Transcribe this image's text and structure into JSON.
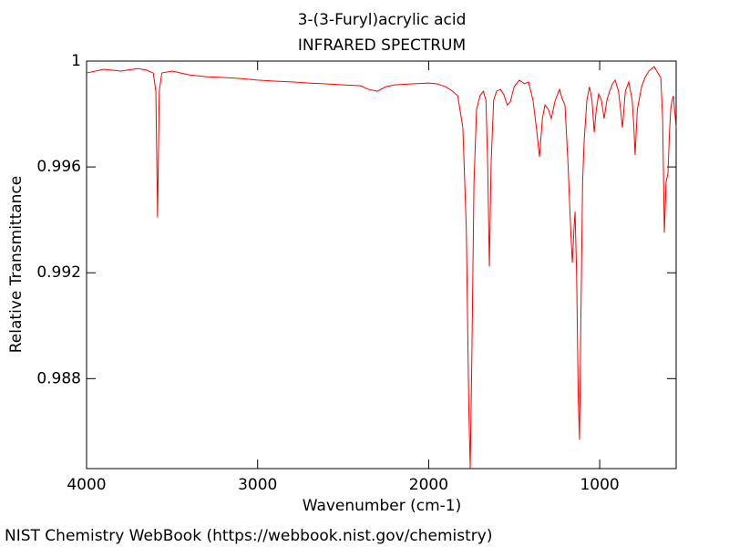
{
  "chart_data": {
    "type": "line",
    "title": "3-(3-Furyl)acrylic acid",
    "subtitle": "INFRARED SPECTRUM",
    "x_label": "Wavenumber (cm-1)",
    "y_label": "Relative Transmittance",
    "xlim": [
      4000,
      553
    ],
    "ylim": [
      0.9846,
      1
    ],
    "xticks": [
      4000,
      3000,
      2000,
      1000
    ],
    "yticks": [
      1,
      0.996,
      0.992,
      0.988
    ],
    "series": [
      {
        "color": "#ff0000",
        "x": [
          4000,
          3900,
          3800,
          3700,
          3650,
          3610,
          3595,
          3585,
          3575,
          3560,
          3500,
          3400,
          3300,
          3200,
          3100,
          3000,
          2900,
          2800,
          2700,
          2600,
          2500,
          2400,
          2350,
          2300,
          2250,
          2200,
          2100,
          2000,
          1950,
          1900,
          1860,
          1830,
          1800,
          1780,
          1765,
          1757,
          1748,
          1735,
          1720,
          1700,
          1680,
          1665,
          1655,
          1645,
          1635,
          1620,
          1603,
          1580,
          1560,
          1540,
          1523,
          1500,
          1470,
          1440,
          1416,
          1390,
          1370,
          1352,
          1335,
          1320,
          1300,
          1283,
          1260,
          1235,
          1220,
          1203,
          1185,
          1170,
          1160,
          1150,
          1144,
          1135,
          1125,
          1118,
          1110,
          1100,
          1091,
          1075,
          1060,
          1045,
          1032,
          1020,
          1006,
          990,
          974,
          958,
          942,
          925,
          910,
          890,
          878,
          867,
          850,
          830,
          810,
          800,
          793,
          780,
          755,
          735,
          713,
          695,
          681,
          660,
          643,
          632,
          622,
          612,
          601,
          593,
          585,
          577,
          569,
          560,
          553
        ],
        "values": [
          0.99955,
          0.99969,
          0.99962,
          0.99972,
          0.99966,
          0.99955,
          0.99886,
          0.9941,
          0.99886,
          0.99955,
          0.99962,
          0.99948,
          0.99941,
          0.99938,
          0.99934,
          0.99928,
          0.99924,
          0.99921,
          0.99917,
          0.99914,
          0.9991,
          0.99907,
          0.99893,
          0.99886,
          0.99903,
          0.9991,
          0.99914,
          0.99917,
          0.99914,
          0.99903,
          0.99886,
          0.99869,
          0.99748,
          0.99369,
          0.98679,
          0.98462,
          0.98852,
          0.99541,
          0.99817,
          0.99869,
          0.99886,
          0.99852,
          0.9961,
          0.99224,
          0.9961,
          0.99852,
          0.99886,
          0.99893,
          0.99872,
          0.99834,
          0.99845,
          0.99903,
          0.99928,
          0.99914,
          0.99921,
          0.99852,
          0.99748,
          0.99638,
          0.99783,
          0.99834,
          0.99817,
          0.99783,
          0.99852,
          0.99893,
          0.99859,
          0.99834,
          0.9961,
          0.99369,
          0.99238,
          0.99369,
          0.99431,
          0.99197,
          0.98714,
          0.98569,
          0.99024,
          0.99541,
          0.99697,
          0.99852,
          0.99903,
          0.99852,
          0.99731,
          0.99817,
          0.99876,
          0.99852,
          0.99783,
          0.99852,
          0.99886,
          0.99914,
          0.99928,
          0.99886,
          0.99817,
          0.99748,
          0.99886,
          0.99921,
          0.99852,
          0.99748,
          0.99645,
          0.99817,
          0.99903,
          0.99938,
          0.99962,
          0.99972,
          0.99979,
          0.99955,
          0.99938,
          0.99783,
          0.99352,
          0.99541,
          0.99576,
          0.99714,
          0.99817,
          0.99852,
          0.99869,
          0.998,
          0.99748
        ]
      }
    ]
  },
  "footer": "NIST Chemistry WebBook (https://webbook.nist.gov/chemistry)"
}
